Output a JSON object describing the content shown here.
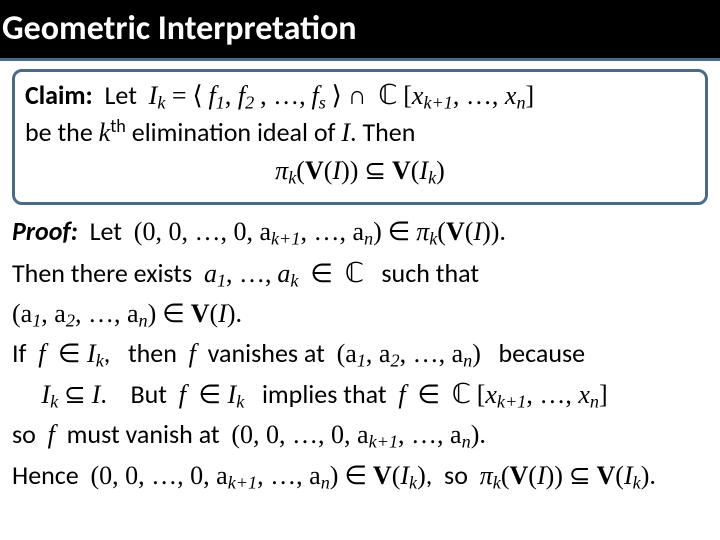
{
  "title": "Geometric Interpretation",
  "claim": {
    "label": "Claim:",
    "pre1": "Let",
    "Ik_def_lhs": "I",
    "Ik_def_sub": "k",
    "eq": "=",
    "ideal_open": "⟨",
    "ideal_f1": "f",
    "ideal_f1s": "1",
    "ideal_f2": "f",
    "ideal_f2s": "2",
    "ideal_dots": ", …,",
    "ideal_fs": "f",
    "ideal_fss": "s",
    "ideal_close": "⟩",
    "cap": "∩",
    "C": "ℂ",
    "polyring_open": "[",
    "xk1": "x",
    "xk1s": "k+1",
    "xn": "x",
    "xns": "n",
    "polyring_close": "]",
    "line2a": "be the ",
    "kthk": "k",
    "kthth": "th",
    "line2b": " elimination ideal of ",
    "I": "I",
    "line2c": ".  Then",
    "pi_k": "π",
    "pi_ks": "k",
    "VI": "V(I)",
    "sub": "⊆",
    "VIk": "V(I",
    "VIk_s": "k",
    "VIk_close": ")"
  },
  "proof": {
    "label": "Proof:",
    "let": "Let",
    "tuple0": "(0, 0, …, 0, a",
    "ak1s": "k+1",
    "mid": ", …, a",
    "ans": "n",
    "close": ")",
    "in": "∈",
    "pi": "π",
    "pik": "k",
    "VI": "(V(I))",
    "dot": ".",
    "line2a": "Then there exists",
    "a1": "a",
    "a1s": "1",
    "adots": ", …,",
    "ak": "a",
    "aks": "k",
    "inC": "∈",
    "C": "ℂ",
    "such": "such that",
    "tuple_full_open": "(a",
    "t1": "1",
    "tc": ", a",
    "t2": "2",
    "tdots": ", …, a",
    "tn": "n",
    "tclose": ")",
    "inVI": "∈",
    "VI2": "V(I)",
    "if": "If",
    "f": "f",
    "inIk": "∈ I",
    "Iks": "k",
    "comma1": ",",
    "then": "then",
    "f2": "f",
    "vanishes": "vanishes at",
    "tuple_full2_open": "(a",
    "because": "because",
    "IkSubI_l": "I",
    "IkSubI_s": "k",
    "IkSubI_sub": "⊆",
    "IkSubI_r": "I",
    "but": "But",
    "f3": "f",
    "inIk2": "∈ I",
    "implies": "implies that",
    "f4": "f",
    "inCx": "∈",
    "C2": "ℂ",
    "so1": "so",
    "f5": "f",
    "must": "must vanish at",
    "tuple0b": "(0, 0, …, 0, a",
    "hence": "Hence",
    "inVIk": "∈",
    "VIk_l": "V(I",
    "VIk_s": "k",
    "VIk_r": ")",
    "comma2": ",",
    "so2": "so",
    "pi2": "π",
    "pi2k": "k",
    "VI3": "(V(I))",
    "sub2": "⊆",
    "VIk2_l": "V(I",
    "VIk2_s": "k",
    "VIk2_r": ")"
  },
  "colors": {
    "title_bg": "#000000",
    "title_fg": "#ffffff",
    "box_border": "#4a6a8a",
    "text": "#000000",
    "bg": "#ffffff"
  }
}
